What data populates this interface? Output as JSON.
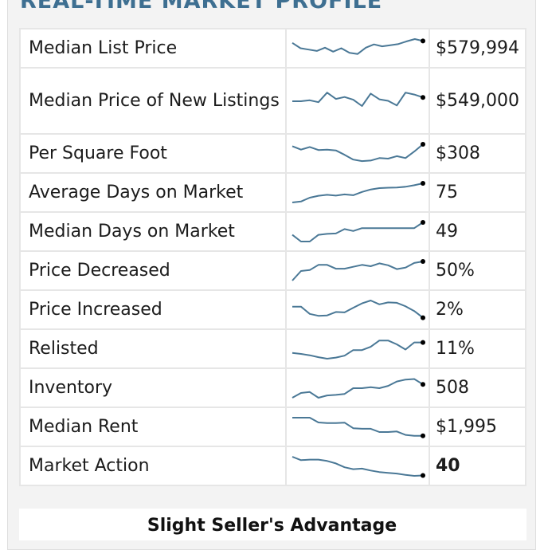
{
  "header": {
    "title": "REAL-TIME MARKET PROFILE"
  },
  "colors": {
    "accent": "#3e6f91",
    "line": "#4a7896",
    "dot": "#000000"
  },
  "rows": [
    {
      "label": "Median List Price",
      "value": "$579,994",
      "bold": false,
      "trend": [
        0.8,
        0.52,
        0.45,
        0.38,
        0.55,
        0.34,
        0.52,
        0.28,
        0.22,
        0.55,
        0.72,
        0.62,
        0.68,
        0.74,
        0.88,
        1.0,
        0.9
      ]
    },
    {
      "label": "Median Price of New Listings",
      "value": "$549,000",
      "bold": false,
      "trend": [
        0.5,
        0.5,
        0.55,
        0.45,
        0.95,
        0.62,
        0.72,
        0.58,
        0.25,
        0.9,
        0.6,
        0.52,
        0.28,
        0.95,
        0.85,
        0.7
      ]
    },
    {
      "label": "Per Square Foot",
      "value": "$308",
      "bold": false,
      "trend": [
        0.9,
        0.72,
        0.86,
        0.7,
        0.72,
        0.68,
        0.45,
        0.2,
        0.12,
        0.15,
        0.28,
        0.25,
        0.38,
        0.28,
        0.62,
        1.0
      ]
    },
    {
      "label": "Average Days on Market",
      "value": "75",
      "bold": false,
      "trend": [
        0.0,
        0.05,
        0.25,
        0.35,
        0.4,
        0.36,
        0.42,
        0.38,
        0.55,
        0.68,
        0.75,
        0.77,
        0.78,
        0.82,
        0.9,
        1.0
      ]
    },
    {
      "label": "Median Days on Market",
      "value": "49",
      "bold": false,
      "trend": [
        0.35,
        0.0,
        0.0,
        0.35,
        0.4,
        0.42,
        0.65,
        0.55,
        0.7,
        0.7,
        0.7,
        0.7,
        0.7,
        0.7,
        0.7,
        1.0
      ]
    },
    {
      "label": "Price Decreased",
      "value": "50%",
      "bold": false,
      "trend": [
        0.0,
        0.5,
        0.55,
        0.82,
        0.82,
        0.62,
        0.62,
        0.72,
        0.82,
        0.75,
        0.9,
        0.8,
        0.6,
        0.68,
        0.92,
        1.0
      ]
    },
    {
      "label": "Price Increased",
      "value": "2%",
      "bold": false,
      "trend": [
        0.68,
        0.68,
        0.3,
        0.2,
        0.22,
        0.4,
        0.38,
        0.62,
        0.85,
        1.0,
        0.8,
        0.9,
        0.88,
        0.7,
        0.45,
        0.1
      ]
    },
    {
      "label": "Relisted",
      "value": "11%",
      "bold": false,
      "trend": [
        0.3,
        0.25,
        0.18,
        0.08,
        0.0,
        0.06,
        0.16,
        0.45,
        0.45,
        0.62,
        0.95,
        0.95,
        0.75,
        0.48,
        0.85,
        0.85
      ]
    },
    {
      "label": "Inventory",
      "value": "508",
      "bold": false,
      "trend": [
        0.0,
        0.25,
        0.3,
        0.0,
        0.12,
        0.15,
        0.2,
        0.5,
        0.5,
        0.55,
        0.5,
        0.62,
        0.85,
        0.95,
        0.98,
        0.7
      ]
    },
    {
      "label": "Median Rent",
      "value": "$1,995",
      "bold": false,
      "trend": [
        1.0,
        1.0,
        1.0,
        0.75,
        0.72,
        0.72,
        0.74,
        0.45,
        0.42,
        0.42,
        0.25,
        0.25,
        0.28,
        0.1,
        0.05,
        0.05
      ]
    },
    {
      "label": "Market Action",
      "value": "40",
      "bold": true,
      "trend": [
        1.0,
        0.82,
        0.85,
        0.85,
        0.78,
        0.65,
        0.45,
        0.35,
        0.38,
        0.28,
        0.2,
        0.16,
        0.12,
        0.05,
        0.0,
        0.02
      ]
    }
  ],
  "footer": {
    "verdict": "Slight Seller's Advantage"
  }
}
